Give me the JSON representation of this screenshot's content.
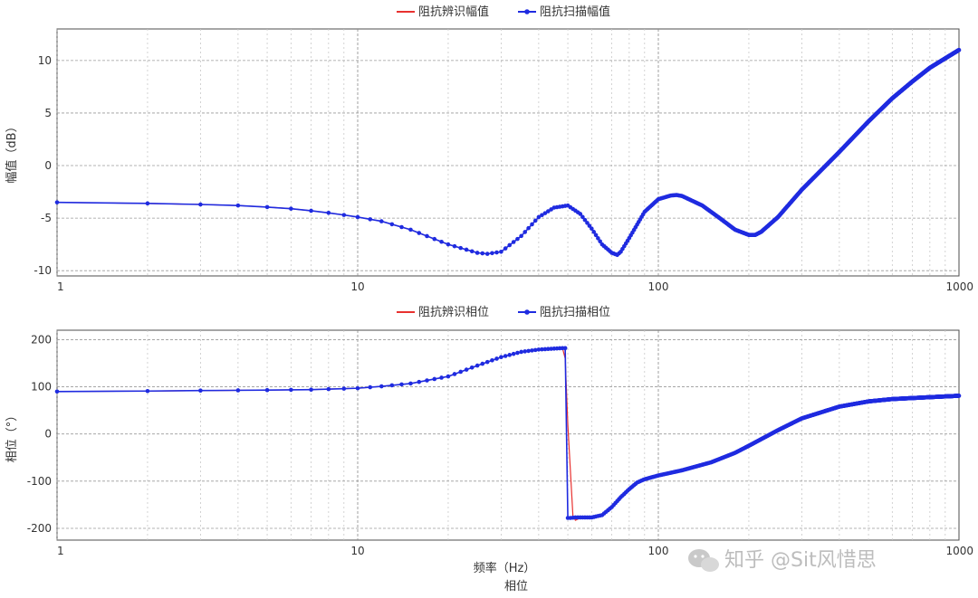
{
  "chart_data": [
    {
      "type": "line",
      "title": "",
      "xlabel": "",
      "ylabel": "幅值（dB）",
      "xscale": "log",
      "xlim": [
        1,
        1000
      ],
      "ylim": [
        -10.5,
        13
      ],
      "yticks": [
        -10,
        -5,
        0,
        5,
        10
      ],
      "xticks": [
        1,
        10,
        100,
        1000
      ],
      "grid": true,
      "legend_position": "top-center",
      "series": [
        {
          "name": "阻抗辨识幅值",
          "color": "#e8312f",
          "marker": false,
          "x": [
            1,
            2,
            3,
            4,
            5,
            6,
            7,
            8,
            9,
            10,
            12,
            15,
            20,
            25,
            27,
            30,
            35,
            40,
            45,
            50,
            55,
            60,
            65,
            70,
            73,
            75,
            80,
            90,
            100,
            110,
            115,
            120,
            140,
            160,
            180,
            200,
            210,
            220,
            250,
            300,
            400,
            500,
            600,
            700,
            800,
            900,
            1000
          ],
          "y": [
            -3.5,
            -3.6,
            -3.7,
            -3.8,
            -3.95,
            -4.1,
            -4.3,
            -4.5,
            -4.7,
            -4.9,
            -5.3,
            -6.1,
            -7.5,
            -8.3,
            -8.4,
            -8.2,
            -6.7,
            -4.9,
            -4.0,
            -3.8,
            -4.6,
            -6.0,
            -7.5,
            -8.3,
            -8.5,
            -8.2,
            -6.9,
            -4.4,
            -3.2,
            -2.85,
            -2.8,
            -2.9,
            -3.8,
            -5.0,
            -6.1,
            -6.6,
            -6.6,
            -6.3,
            -4.9,
            -2.3,
            1.3,
            4.2,
            6.4,
            8.0,
            9.3,
            10.2,
            11.0
          ]
        },
        {
          "name": "阻抗扫描幅值",
          "color": "#1f2be0",
          "marker": true,
          "x": [
            1,
            2,
            3,
            4,
            5,
            6,
            7,
            8,
            9,
            10,
            12,
            15,
            20,
            25,
            27,
            30,
            35,
            40,
            45,
            50,
            55,
            60,
            65,
            70,
            73,
            75,
            80,
            90,
            100,
            110,
            115,
            120,
            140,
            160,
            180,
            200,
            210,
            220,
            250,
            300,
            400,
            500,
            600,
            700,
            800,
            900,
            1000
          ],
          "y": [
            -3.5,
            -3.6,
            -3.7,
            -3.8,
            -3.95,
            -4.1,
            -4.3,
            -4.5,
            -4.7,
            -4.9,
            -5.3,
            -6.1,
            -7.5,
            -8.3,
            -8.4,
            -8.2,
            -6.7,
            -4.9,
            -4.0,
            -3.8,
            -4.6,
            -6.0,
            -7.5,
            -8.3,
            -8.5,
            -8.2,
            -6.9,
            -4.4,
            -3.2,
            -2.85,
            -2.8,
            -2.9,
            -3.8,
            -5.0,
            -6.1,
            -6.6,
            -6.6,
            -6.3,
            -4.9,
            -2.3,
            1.3,
            4.2,
            6.4,
            8.0,
            9.3,
            10.2,
            11.0
          ]
        }
      ]
    },
    {
      "type": "line",
      "title": "相位",
      "xlabel": "频率（Hz）",
      "ylabel": "相位（°）",
      "xscale": "log",
      "xlim": [
        1,
        1000
      ],
      "ylim": [
        -225,
        220
      ],
      "yticks": [
        -200,
        -100,
        0,
        100,
        200
      ],
      "xticks": [
        1,
        10,
        100,
        1000
      ],
      "grid": true,
      "legend_position": "top-center",
      "series": [
        {
          "name": "阻抗辨识相位",
          "color": "#e8312f",
          "marker": false,
          "x": [
            1,
            2,
            3,
            5,
            7,
            10,
            12,
            15,
            20,
            25,
            30,
            35,
            40,
            45,
            48,
            49,
            50,
            52,
            53,
            55,
            60,
            65,
            70,
            75,
            80,
            85,
            90,
            100,
            120,
            150,
            180,
            200,
            250,
            300,
            400,
            500,
            600,
            800,
            1000
          ],
          "y": [
            90,
            91,
            92,
            93,
            94,
            97,
            101,
            107,
            122,
            145,
            163,
            174,
            179,
            181,
            182,
            160,
            20,
            -175,
            -183,
            -178,
            -177,
            -172,
            -155,
            -134,
            -117,
            -103,
            -96,
            -88,
            -77,
            -60,
            -40,
            -25,
            8,
            33,
            58,
            69,
            74,
            78,
            81
          ]
        },
        {
          "name": "阻抗扫描相位",
          "color": "#1f2be0",
          "marker": true,
          "x": [
            1,
            2,
            3,
            5,
            7,
            10,
            12,
            15,
            20,
            25,
            30,
            35,
            40,
            45,
            48,
            49,
            50,
            51,
            53,
            55,
            60,
            65,
            70,
            75,
            80,
            85,
            90,
            100,
            120,
            150,
            180,
            200,
            250,
            300,
            400,
            500,
            600,
            800,
            1000
          ],
          "y": [
            90,
            91,
            92,
            93,
            94,
            97,
            101,
            107,
            122,
            145,
            163,
            174,
            179,
            181,
            182,
            182,
            -178,
            -178,
            -177,
            -177,
            -177,
            -172,
            -155,
            -134,
            -117,
            -103,
            -96,
            -88,
            -77,
            -60,
            -40,
            -25,
            8,
            33,
            58,
            69,
            74,
            78,
            81
          ]
        }
      ]
    }
  ],
  "watermark": "知乎 @Sit风惜思",
  "icons": {
    "watermark_logo": "wechat-logo-icon"
  }
}
